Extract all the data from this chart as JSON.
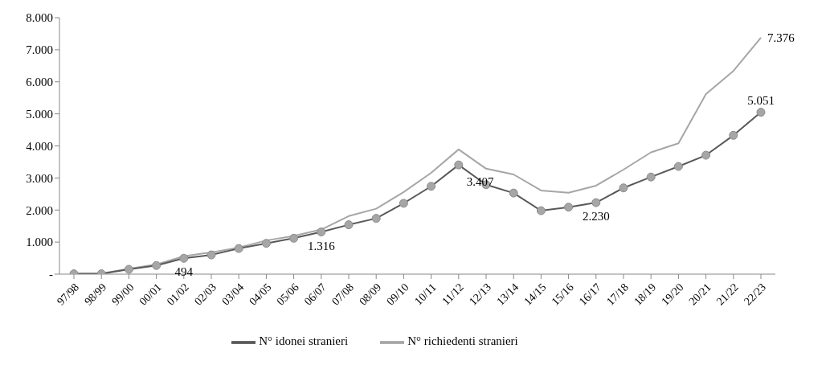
{
  "chart_data": {
    "type": "line",
    "categories": [
      "97/98",
      "98/99",
      "99/00",
      "00/01",
      "01/02",
      "02/03",
      "03/04",
      "04/05",
      "05/06",
      "06/07",
      "07/08",
      "08/09",
      "09/10",
      "10/11",
      "11/12",
      "12/13",
      "13/14",
      "14/15",
      "15/16",
      "16/17",
      "17/18",
      "18/19",
      "19/20",
      "20/21",
      "21/22",
      "22/23"
    ],
    "series": [
      {
        "name": "N° richiedenti stranieri",
        "color": "#a6a6a6",
        "marker": "none",
        "values": [
          10,
          20,
          170,
          300,
          560,
          680,
          830,
          1050,
          1190,
          1390,
          1810,
          2040,
          2560,
          3160,
          3890,
          3290,
          3110,
          2610,
          2540,
          2760,
          3260,
          3800,
          4080,
          5620,
          6340,
          7376
        ],
        "value_labels": [
          null,
          null,
          null,
          null,
          null,
          null,
          null,
          null,
          null,
          null,
          null,
          null,
          null,
          null,
          null,
          null,
          null,
          null,
          null,
          null,
          null,
          null,
          null,
          null,
          null,
          "7.376"
        ]
      },
      {
        "name": "N° idonei stranieri",
        "color": "#595959",
        "marker": "circle",
        "values": [
          10,
          10,
          150,
          270,
          494,
          600,
          800,
          960,
          1120,
          1316,
          1540,
          1740,
          2210,
          2740,
          3407,
          2790,
          2530,
          1980,
          2090,
          2230,
          2690,
          3030,
          3360,
          3710,
          4330,
          5051
        ],
        "value_labels": [
          null,
          null,
          null,
          null,
          "494",
          null,
          null,
          null,
          null,
          "1.316",
          null,
          null,
          null,
          null,
          "3.407",
          null,
          null,
          null,
          null,
          "2.230",
          null,
          null,
          null,
          null,
          null,
          "5.051"
        ]
      }
    ],
    "ylim": [
      0,
      8000
    ],
    "yticks": [
      {
        "value": 0,
        "label": "-"
      },
      {
        "value": 1000,
        "label": "1.000"
      },
      {
        "value": 2000,
        "label": "2.000"
      },
      {
        "value": 3000,
        "label": "3.000"
      },
      {
        "value": 4000,
        "label": "4.000"
      },
      {
        "value": 5000,
        "label": "5.000"
      },
      {
        "value": 6000,
        "label": "6.000"
      },
      {
        "value": 7000,
        "label": "7.000"
      },
      {
        "value": 8000,
        "label": "8.000"
      }
    ],
    "grid": false,
    "legend": "bottom"
  }
}
